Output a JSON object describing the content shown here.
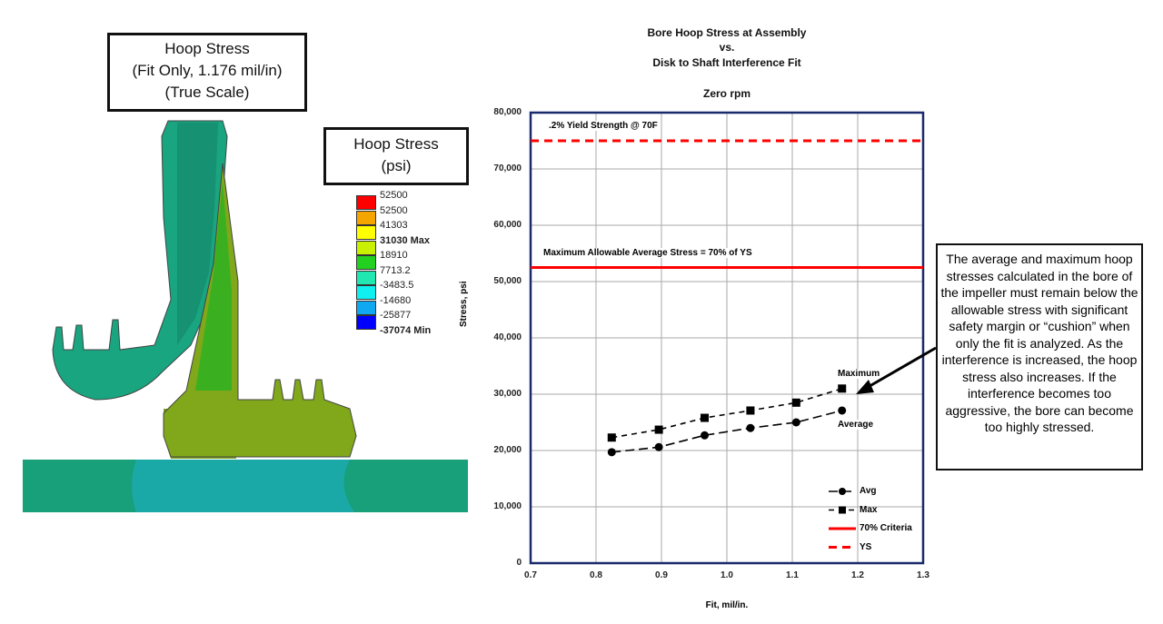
{
  "model_box": {
    "line1": "Hoop Stress",
    "line2": "(Fit Only, 1.176 mil/in)",
    "line3": "(True Scale)"
  },
  "legend_box": {
    "line1": "Hoop Stress",
    "line2": "(psi)"
  },
  "contour_legend": [
    {
      "label": "52500",
      "color": "#ff0000"
    },
    {
      "label": "52500",
      "color": "#f5a500"
    },
    {
      "label": "41303",
      "color": "#ffff00"
    },
    {
      "label": "31030 Max",
      "color": "#c8f000",
      "bold": true
    },
    {
      "label": "18910",
      "color": "#22d020"
    },
    {
      "label": "7713.2",
      "color": "#20e8b0"
    },
    {
      "label": "-3483.5",
      "color": "#10f0f0"
    },
    {
      "label": "-14680",
      "color": "#10a8f0"
    },
    {
      "label": "-25877",
      "color": "#0000ff"
    },
    {
      "label": "-37074 Min",
      "bold": true
    }
  ],
  "chart_data": {
    "type": "line",
    "title": "Bore Hoop Stress at Assembly",
    "title2": "vs.",
    "title3": "Disk to Shaft Interference Fit",
    "subtitle": "Zero rpm",
    "xlabel": "Fit, mil/in.",
    "ylabel": "Stress, psi",
    "xlim": [
      0.7,
      1.3
    ],
    "ylim": [
      0,
      80000
    ],
    "xticks": [
      "0.7",
      "0.8",
      "0.9",
      "1.0",
      "1.1",
      "1.2",
      "1.3"
    ],
    "yticks": [
      "0",
      "10,000",
      "20,000",
      "30,000",
      "40,000",
      "50,000",
      "60,000",
      "70,000",
      "80,000"
    ],
    "grid": true,
    "legend_position": "bottom-right",
    "x": [
      0.824,
      0.896,
      0.966,
      1.036,
      1.106,
      1.176
    ],
    "series": [
      {
        "name": "Avg",
        "values": [
          19700,
          20600,
          22700,
          24000,
          25000,
          27100
        ],
        "marker": "circle",
        "color": "#000000"
      },
      {
        "name": "Max",
        "values": [
          22300,
          23700,
          25800,
          27100,
          28500,
          31000
        ],
        "marker": "square",
        "color": "#000000"
      }
    ],
    "hlines": [
      {
        "name": "70% Criteria",
        "value": 52500,
        "style": "solid",
        "color": "#ff0000",
        "annotation": "Maximum Allowable Average Stress = 70% of YS"
      },
      {
        "name": "YS",
        "value": 75000,
        "style": "dashed",
        "color": "#ff0000",
        "annotation": ".2% Yield Strength @ 70F"
      }
    ],
    "point_labels": {
      "max": "Maximum",
      "avg": "Average"
    }
  },
  "callout": "The average and maximum hoop stresses calculated in the bore of the impeller must remain below the allowable stress with significant safety margin or “cushion” when only the fit is analyzed.  As the interference is increased, the hoop stress also increases.  If the interference becomes too aggressive, the bore can become too highly stressed."
}
